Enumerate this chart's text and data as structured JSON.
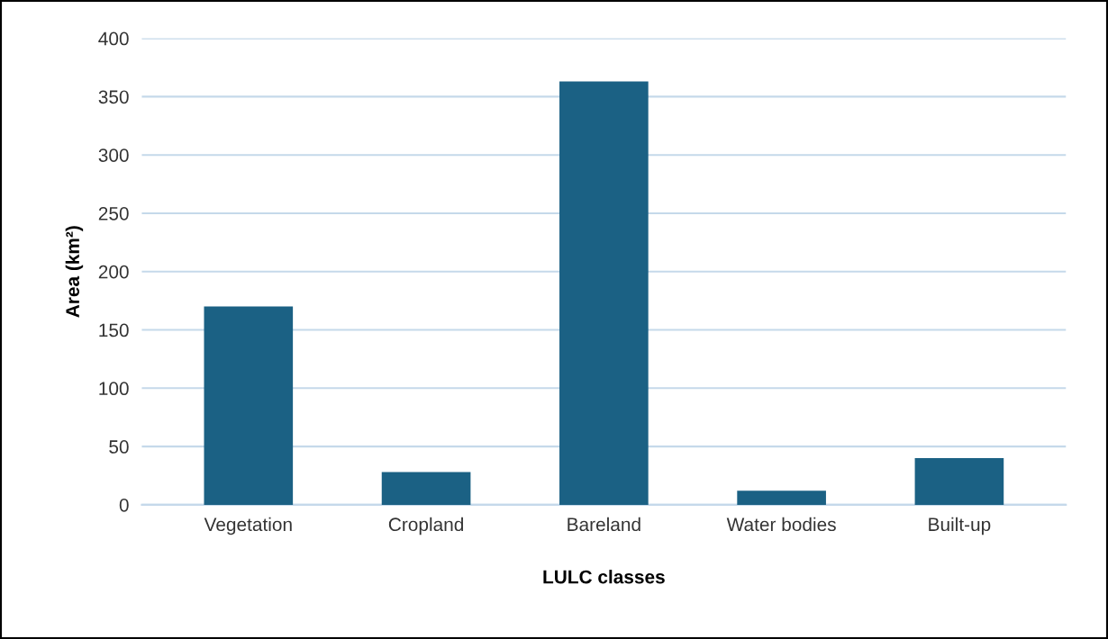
{
  "chart_data": {
    "type": "bar",
    "xlabel": "LULC classes",
    "ylabel": "Area (km²)",
    "categories": [
      "Vegetation",
      "Cropland",
      "Bareland",
      "Water bodies",
      "Built-up"
    ],
    "values": [
      170,
      28,
      363,
      12,
      40
    ],
    "color": "#1b6184",
    "ylim": [
      0,
      400
    ],
    "yticks": [
      0,
      50,
      100,
      150,
      200,
      250,
      300,
      350,
      400
    ],
    "grid": "y"
  }
}
